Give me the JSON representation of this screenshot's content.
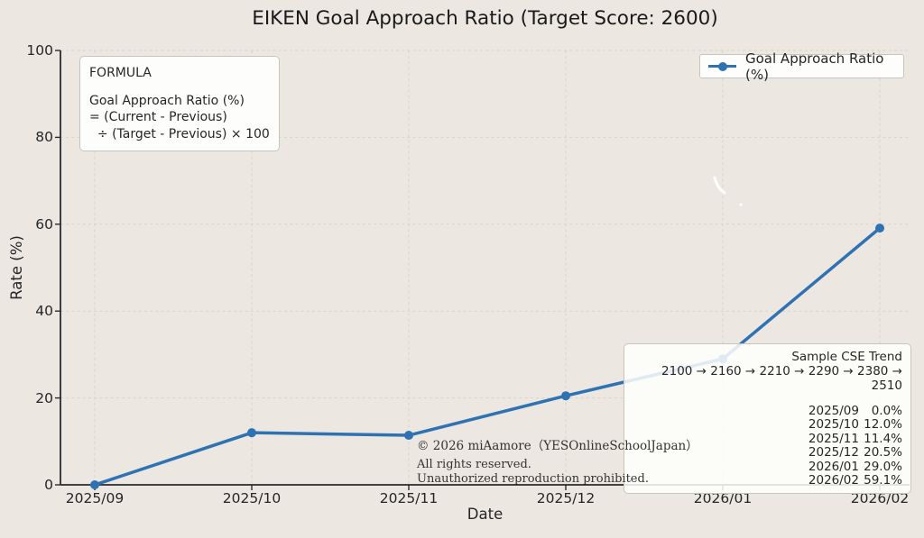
{
  "title": "EIKEN Goal Approach Ratio (Target Score: 2600)",
  "axes": {
    "x_label": "Date",
    "y_label": "Rate (%)",
    "y_ticks": [
      "0",
      "20",
      "40",
      "60",
      "80",
      "100"
    ]
  },
  "legend": {
    "label": "Goal Approach Ratio (%)"
  },
  "formula_box": {
    "heading": "FORMULA",
    "lines": [
      "Goal Approach Ratio (%)",
      "= (Current - Previous)",
      "  ÷ (Target - Previous) × 100"
    ]
  },
  "annotation_box": {
    "title": "Sample CSE Trend",
    "trend": "2100 → 2160 → 2210 → 2290 → 2380 → 2510",
    "rows": [
      {
        "date": "2025/09",
        "value": "0.0%"
      },
      {
        "date": "2025/10",
        "value": "12.0%"
      },
      {
        "date": "2025/11",
        "value": "11.4%"
      },
      {
        "date": "2025/12",
        "value": "20.5%"
      },
      {
        "date": "2026/01",
        "value": "29.0%"
      },
      {
        "date": "2026/02",
        "value": "59.1%"
      }
    ]
  },
  "copyright": {
    "line1": "© 2026 miAamore（YESOnlineSchoolJapan）",
    "line2": "All rights reserved.",
    "line3": "Unauthorized reproduction prohibited."
  },
  "colors": {
    "background": "#ece8e1",
    "line": "#2f72b3",
    "grid": "#d7d3c9",
    "spine": "#2b2b2b",
    "text": "#262626",
    "box_background": "#fdfdfb",
    "box_border": "#c9c5bc"
  },
  "chart_data": {
    "type": "line",
    "title": "EIKEN Goal Approach Ratio (Target Score: 2600)",
    "xlabel": "Date",
    "ylabel": "Rate (%)",
    "ylim": [
      0,
      100
    ],
    "grid": true,
    "grid_style": "dashed",
    "legend_position": "upper right",
    "categories": [
      "2025/09",
      "2025/10",
      "2025/11",
      "2025/12",
      "2026/01",
      "2026/02"
    ],
    "series": [
      {
        "name": "Goal Approach Ratio (%)",
        "values": [
          0.0,
          12.0,
          11.4,
          20.5,
          29.0,
          59.1
        ]
      }
    ]
  }
}
